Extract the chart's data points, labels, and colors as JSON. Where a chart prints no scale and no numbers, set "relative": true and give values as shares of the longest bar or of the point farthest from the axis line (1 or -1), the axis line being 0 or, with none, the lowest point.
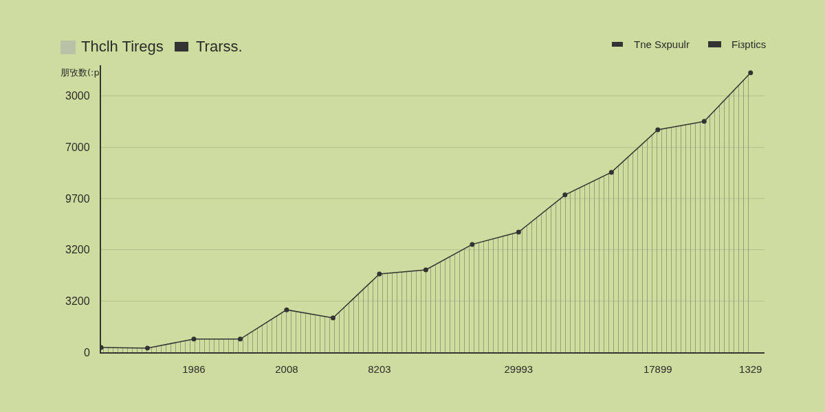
{
  "chart_data": {
    "type": "area",
    "ylabel": "朋攷数(:p",
    "annotations": [
      "Thclh Tiregs",
      "Trarss.",
      "Tne Sxpuulr",
      "Fiзptics",
      "0",
      "3200",
      "3200",
      "9700",
      "7000",
      "3000"
    ],
    "ref_lines": [
      {
        "axis": "y",
        "value": 0.183
      },
      {
        "axis": "y",
        "value": 0.367
      },
      {
        "axis": "y",
        "value": 0.55
      },
      {
        "axis": "y",
        "value": 0.733
      },
      {
        "axis": "y",
        "value": 0.917
      }
    ],
    "categories": [
      null,
      null,
      "1986",
      null,
      "2008",
      null,
      "8203",
      null,
      null,
      "29993",
      null,
      null,
      "17899",
      null,
      "1329"
    ],
    "series": [
      {
        "color": "#333333",
        "values": [
          0.017,
          0.015,
          0.047,
          0.047,
          0.152,
          0.123,
          0.28,
          0.295,
          0.386,
          0.43,
          0.563,
          0.644,
          0.796,
          0.826,
          1
        ]
      }
    ],
    "relative": true,
    "marker": "circle",
    "line_style": "solid"
  }
}
